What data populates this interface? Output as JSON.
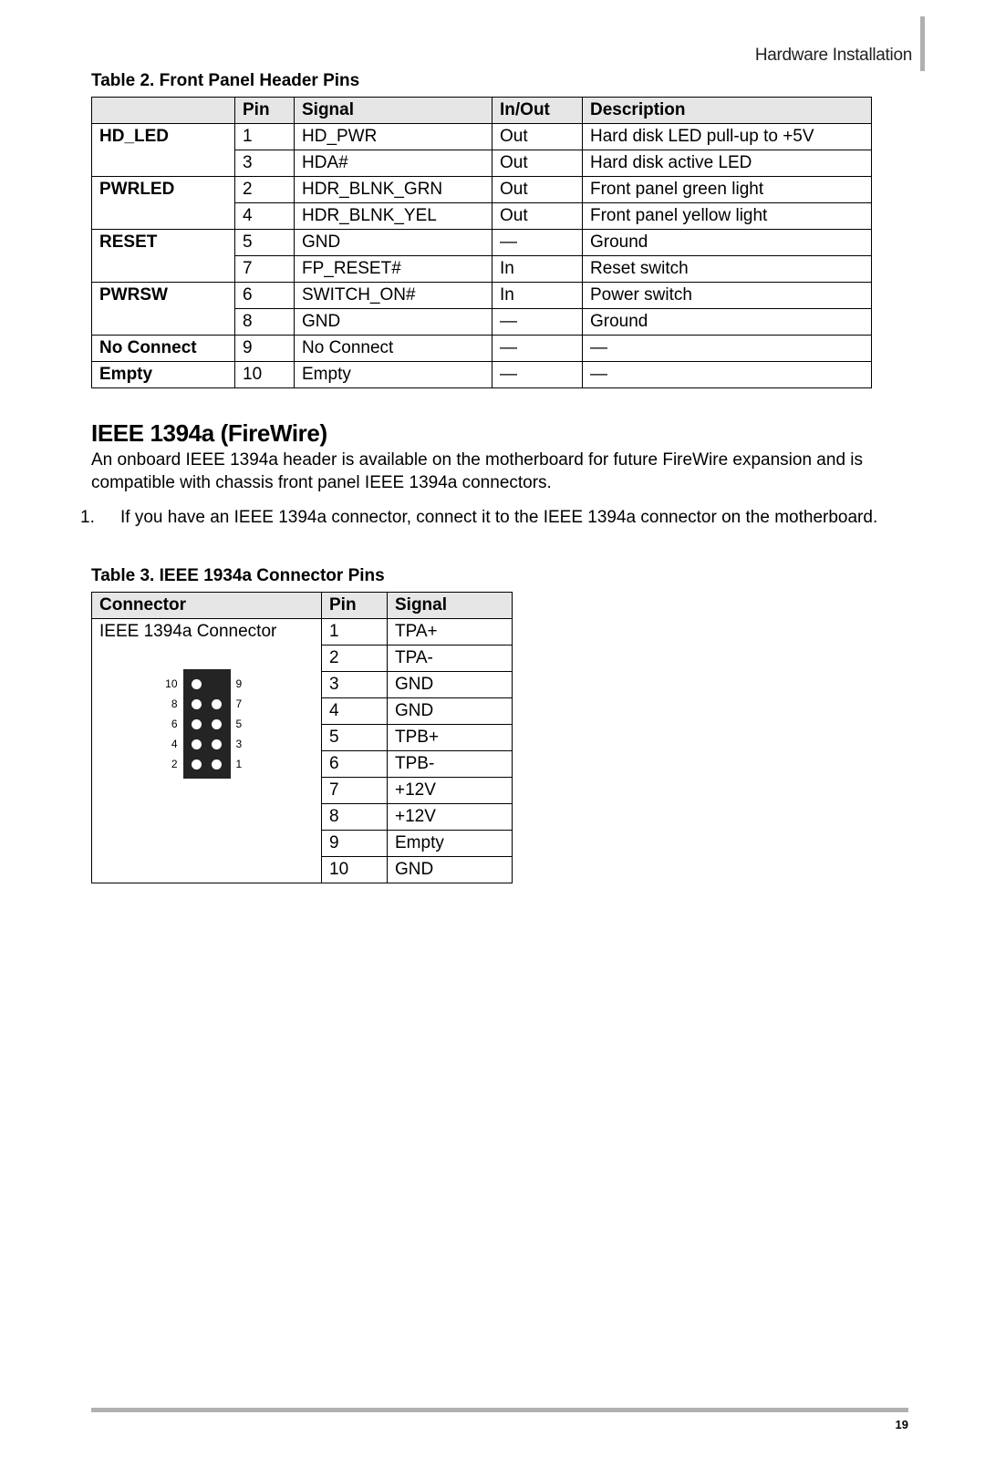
{
  "header": {
    "section": "Hardware Installation"
  },
  "table1": {
    "caption": "Table 2. Front Panel Header Pins",
    "columns": [
      "Pin",
      "Signal",
      "In/Out",
      "Description"
    ],
    "groups": [
      {
        "label": "HD_LED",
        "rows": [
          {
            "pin": "1",
            "signal": "HD_PWR",
            "io": "Out",
            "desc": "Hard disk LED pull-up to +5V"
          },
          {
            "pin": "3",
            "signal": "HDA#",
            "io": "Out",
            "desc": "Hard disk active LED"
          }
        ]
      },
      {
        "label": "PWRLED",
        "rows": [
          {
            "pin": "2",
            "signal": "HDR_BLNK_GRN",
            "io": "Out",
            "desc": "Front panel green light"
          },
          {
            "pin": "4",
            "signal": "HDR_BLNK_YEL",
            "io": "Out",
            "desc": "Front panel yellow light"
          }
        ]
      },
      {
        "label": "RESET",
        "rows": [
          {
            "pin": "5",
            "signal": "GND",
            "io": "—",
            "desc": "Ground"
          },
          {
            "pin": "7",
            "signal": "FP_RESET#",
            "io": "In",
            "desc": "Reset switch"
          }
        ]
      },
      {
        "label": "PWRSW",
        "rows": [
          {
            "pin": "6",
            "signal": "SWITCH_ON#",
            "io": "In",
            "desc": "Power switch"
          },
          {
            "pin": "8",
            "signal": "GND",
            "io": "—",
            "desc": "Ground"
          }
        ]
      },
      {
        "label": "No Connect",
        "rows": [
          {
            "pin": "9",
            "signal": "No Connect",
            "io": "—",
            "desc": "—"
          }
        ]
      },
      {
        "label": "Empty",
        "rows": [
          {
            "pin": "10",
            "signal": "Empty",
            "io": "—",
            "desc": "—"
          }
        ]
      }
    ]
  },
  "section": {
    "heading": "IEEE 1394a (FireWire)",
    "para": "An onboard IEEE 1394a header is available on the motherboard for future FireWire expansion and is compatible with chassis front panel IEEE 1394a connectors.",
    "step1": "If you have an IEEE 1394a connector, connect it to the IEEE 1394a connector on the motherboard."
  },
  "table2": {
    "caption": "Table 3. IEEE 1934a Connector Pins",
    "columns": [
      "Connector",
      "Pin",
      "Signal"
    ],
    "connector_label": "IEEE 1394a Connector",
    "rows": [
      {
        "pin": "1",
        "signal": "TPA+"
      },
      {
        "pin": "2",
        "signal": "TPA-"
      },
      {
        "pin": "3",
        "signal": "GND"
      },
      {
        "pin": "4",
        "signal": "GND"
      },
      {
        "pin": "5",
        "signal": "TPB+"
      },
      {
        "pin": "6",
        "signal": "TPB-"
      },
      {
        "pin": "7",
        "signal": "+12V"
      },
      {
        "pin": "8",
        "signal": "+12V"
      },
      {
        "pin": "9",
        "signal": "Empty"
      },
      {
        "pin": "10",
        "signal": "GND"
      }
    ],
    "diagram": {
      "left_labels": [
        "10",
        "8",
        "6",
        "4",
        "2"
      ],
      "right_labels": [
        "9",
        "7",
        "5",
        "3",
        "1"
      ],
      "missing_pin": 9
    }
  },
  "footer": {
    "page": "19"
  }
}
